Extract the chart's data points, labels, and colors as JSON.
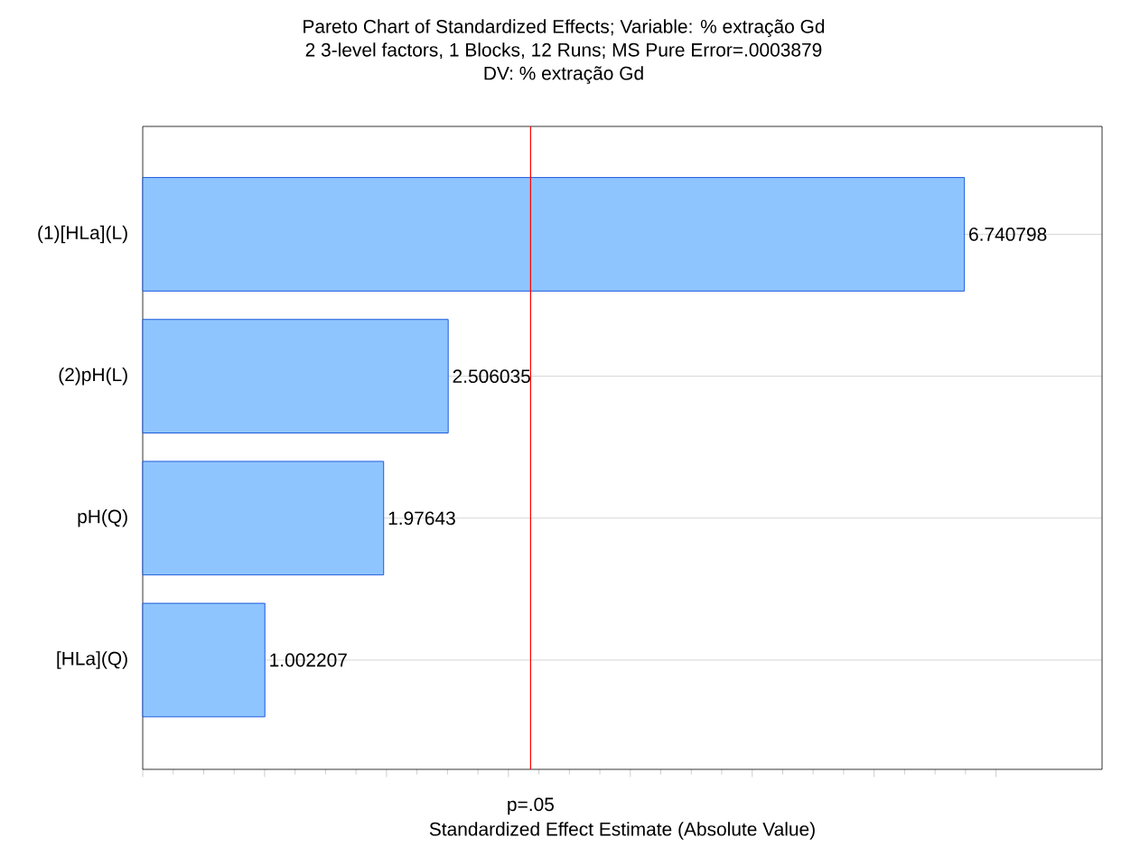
{
  "chart_data": {
    "type": "bar",
    "orientation": "horizontal",
    "title": "Pareto Chart of Standardized Effects; Variable: % extração Gd",
    "subtitle": "2 3-level factors, 1 Blocks, 12 Runs; MS Pure Error=.0003879",
    "annotations": [
      "DV: % extração Gd"
    ],
    "xlabel": "Standardized Effect Estimate (Absolute Value)",
    "categories": [
      "(1)[HLa](L)",
      "(2)pH(L)",
      "pH(Q)",
      "[HLa](Q)"
    ],
    "values": [
      6.740798,
      2.506035,
      1.97643,
      1.002207
    ],
    "color": "#8fc5ff",
    "data_labels": true,
    "xlim": [
      0,
      7.87
    ],
    "xticks": [
      {
        "value": 0,
        "label": null
      },
      {
        "value": 1,
        "label": null
      },
      {
        "value": 2,
        "label": null
      },
      {
        "value": 3,
        "label": null
      },
      {
        "value": 4,
        "label": null
      },
      {
        "value": 5,
        "label": null
      },
      {
        "value": 6,
        "label": null
      },
      {
        "value": 7,
        "label": null
      }
    ],
    "tick_labels": "y",
    "grid": "y",
    "ref_lines": [
      {
        "axis": "x",
        "value": 3.182,
        "label": "p=.05",
        "color": "#ff0000"
      }
    ]
  }
}
